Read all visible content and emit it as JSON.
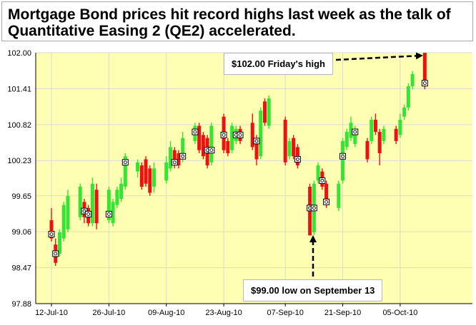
{
  "title": "Mortgage Bond prices hit record highs last week as the talk of\nQuantitative Easing 2 (QE2) accelerated.",
  "annotations": {
    "high": "$102.00 Friday's high",
    "low": "$99.00 low on September 13"
  },
  "colors": {
    "plot_bg": "#ffffb3",
    "grid": "#d9d9d9",
    "up": "#33e633",
    "down": "#ee1111",
    "arrow": "#000000"
  },
  "chart_data": {
    "type": "candlestick",
    "title": "Mortgage Bond prices hit record highs last week as the talk of Quantitative Easing 2 (QE2) accelerated.",
    "ylim": [
      97.88,
      102.0
    ],
    "y_ticks": [
      "97.88",
      "98.47",
      "99.06",
      "99.65",
      "100.23",
      "100.82",
      "101.41",
      "102.00"
    ],
    "x_ticks": [
      {
        "label": "12-Jul-10",
        "day": 0
      },
      {
        "label": "26-Jul-10",
        "day": 14
      },
      {
        "label": "09-Aug-10",
        "day": 28
      },
      {
        "label": "23-Aug-10",
        "day": 42
      },
      {
        "label": "07-Sep-10",
        "day": 57
      },
      {
        "label": "21-Sep-10",
        "day": 71
      },
      {
        "label": "05-Oct-10",
        "day": 85
      }
    ],
    "grid": true,
    "candles": [
      {
        "date": "12-Jul-10",
        "open": 99.25,
        "close": 98.95,
        "high": 99.45,
        "low": 98.9
      },
      {
        "date": "13-Jul-10",
        "open": 98.85,
        "close": 98.55,
        "high": 98.95,
        "low": 98.5
      },
      {
        "date": "14-Jul-10",
        "open": 98.7,
        "close": 99.05,
        "high": 99.1,
        "low": 98.65
      },
      {
        "date": "15-Jul-10",
        "open": 98.95,
        "close": 99.5,
        "high": 99.55,
        "low": 98.9
      },
      {
        "date": "16-Jul-10",
        "open": 99.1,
        "close": 99.65,
        "high": 99.75,
        "low": 99.05
      },
      {
        "date": "19-Jul-10",
        "open": 99.3,
        "close": 99.8,
        "high": 99.85,
        "low": 99.25
      },
      {
        "date": "20-Jul-10",
        "open": 99.55,
        "close": 99.3,
        "high": 99.6,
        "low": 99.2
      },
      {
        "date": "21-Jul-10",
        "open": 99.45,
        "close": 99.2,
        "high": 99.5,
        "low": 99.15
      },
      {
        "date": "22-Jul-10",
        "open": 99.2,
        "close": 99.85,
        "high": 99.95,
        "low": 99.15
      },
      {
        "date": "23-Jul-10",
        "open": 99.75,
        "close": 99.2,
        "high": 99.85,
        "low": 99.1
      },
      {
        "date": "26-Jul-10",
        "open": 99.25,
        "close": 99.75,
        "high": 99.8,
        "low": 99.2
      },
      {
        "date": "27-Jul-10",
        "open": 99.2,
        "close": 99.55,
        "high": 99.6,
        "low": 99.15
      },
      {
        "date": "28-Jul-10",
        "open": 99.5,
        "close": 99.75,
        "high": 99.8,
        "low": 99.45
      },
      {
        "date": "29-Jul-10",
        "open": 99.6,
        "close": 99.85,
        "high": 99.95,
        "low": 99.55
      },
      {
        "date": "30-Jul-10",
        "open": 99.8,
        "close": 100.3,
        "high": 100.35,
        "low": 99.75
      },
      {
        "date": "02-Aug-10",
        "open": 100.05,
        "close": 100.2,
        "high": 100.25,
        "low": 99.95
      },
      {
        "date": "03-Aug-10",
        "open": 100.15,
        "close": 99.8,
        "high": 100.2,
        "low": 99.75
      },
      {
        "date": "04-Aug-10",
        "open": 100.25,
        "close": 99.85,
        "high": 100.3,
        "low": 99.8
      },
      {
        "date": "05-Aug-10",
        "open": 100.1,
        "close": 99.7,
        "high": 100.15,
        "low": 99.65
      },
      {
        "date": "06-Aug-10",
        "open": 99.8,
        "close": 100.1,
        "high": 100.2,
        "low": 99.7
      },
      {
        "date": "09-Aug-10",
        "open": 99.9,
        "close": 100.2,
        "high": 100.3,
        "low": 99.85
      },
      {
        "date": "10-Aug-10",
        "open": 100.1,
        "close": 100.45,
        "high": 100.55,
        "low": 100.05
      },
      {
        "date": "11-Aug-10",
        "open": 100.4,
        "close": 100.15,
        "high": 100.45,
        "low": 100.1
      },
      {
        "date": "12-Aug-10",
        "open": 100.35,
        "close": 100.15,
        "high": 100.4,
        "low": 100.1
      },
      {
        "date": "13-Aug-10",
        "open": 100.25,
        "close": 100.6,
        "high": 100.7,
        "low": 100.2
      },
      {
        "date": "16-Aug-10",
        "open": 100.55,
        "close": 100.8,
        "high": 100.85,
        "low": 100.5
      },
      {
        "date": "17-Aug-10",
        "open": 100.8,
        "close": 100.4,
        "high": 100.85,
        "low": 100.35
      },
      {
        "date": "18-Aug-10",
        "open": 100.65,
        "close": 100.3,
        "high": 100.7,
        "low": 100.25
      },
      {
        "date": "19-Aug-10",
        "open": 100.6,
        "close": 100.15,
        "high": 100.65,
        "low": 100.1
      },
      {
        "date": "20-Aug-10",
        "open": 100.2,
        "close": 100.8,
        "high": 100.85,
        "low": 100.15
      },
      {
        "date": "23-Aug-10",
        "open": 100.95,
        "close": 100.4,
        "high": 101.0,
        "low": 100.35
      },
      {
        "date": "24-Aug-10",
        "open": 100.55,
        "close": 100.35,
        "high": 100.6,
        "low": 100.3
      },
      {
        "date": "25-Aug-10",
        "open": 100.4,
        "close": 100.8,
        "high": 100.85,
        "low": 100.35
      },
      {
        "date": "26-Aug-10",
        "open": 100.55,
        "close": 100.75,
        "high": 100.8,
        "low": 100.5
      },
      {
        "date": "27-Aug-10",
        "open": 100.75,
        "close": 100.55,
        "high": 100.8,
        "low": 100.5
      },
      {
        "date": "30-Aug-10",
        "open": 100.85,
        "close": 100.45,
        "high": 101.0,
        "low": 100.4
      },
      {
        "date": "31-Aug-10",
        "open": 100.6,
        "close": 100.25,
        "high": 100.65,
        "low": 100.15
      },
      {
        "date": "01-Sep-10",
        "open": 100.3,
        "close": 101.05,
        "high": 101.1,
        "low": 100.25
      },
      {
        "date": "02-Sep-10",
        "open": 101.2,
        "close": 100.85,
        "high": 101.25,
        "low": 100.8
      },
      {
        "date": "03-Sep-10",
        "open": 100.8,
        "close": 101.25,
        "high": 101.3,
        "low": 100.75
      },
      {
        "date": "07-Sep-10",
        "open": 100.9,
        "close": 100.2,
        "high": 100.95,
        "low": 100.15
      },
      {
        "date": "08-Sep-10",
        "open": 100.3,
        "close": 100.55,
        "high": 100.6,
        "low": 100.25
      },
      {
        "date": "09-Sep-10",
        "open": 100.6,
        "close": 100.3,
        "high": 100.65,
        "low": 100.25
      },
      {
        "date": "10-Sep-10",
        "open": 100.45,
        "close": 100.15,
        "high": 100.5,
        "low": 100.1
      },
      {
        "date": "13-Sep-10",
        "open": 99.8,
        "close": 99.0,
        "high": 99.85,
        "low": 99.0
      },
      {
        "date": "14-Sep-10",
        "open": 99.05,
        "close": 99.85,
        "high": 99.9,
        "low": 99.0
      },
      {
        "date": "15-Sep-10",
        "open": 99.9,
        "close": 100.15,
        "high": 100.2,
        "low": 99.85
      },
      {
        "date": "16-Sep-10",
        "open": 100.05,
        "close": 99.8,
        "high": 100.1,
        "low": 99.75
      },
      {
        "date": "17-Sep-10",
        "open": 99.85,
        "close": 99.5,
        "high": 99.9,
        "low": 99.45
      },
      {
        "date": "20-Sep-10",
        "open": 99.45,
        "close": 99.85,
        "high": 99.9,
        "low": 99.4
      },
      {
        "date": "21-Sep-10",
        "open": 99.9,
        "close": 100.55,
        "high": 100.6,
        "low": 99.85
      },
      {
        "date": "22-Sep-10",
        "open": 100.45,
        "close": 100.7,
        "high": 100.75,
        "low": 100.4
      },
      {
        "date": "23-Sep-10",
        "open": 100.6,
        "close": 100.85,
        "high": 100.95,
        "low": 100.55
      },
      {
        "date": "24-Sep-10",
        "open": 100.5,
        "close": 100.75,
        "high": 100.8,
        "low": 100.45
      },
      {
        "date": "27-Sep-10",
        "open": 100.55,
        "close": 100.25,
        "high": 100.6,
        "low": 100.2
      },
      {
        "date": "28-Sep-10",
        "open": 100.55,
        "close": 100.9,
        "high": 100.95,
        "low": 100.5
      },
      {
        "date": "29-Sep-10",
        "open": 100.9,
        "close": 100.7,
        "high": 101.0,
        "low": 100.65
      },
      {
        "date": "30-Sep-10",
        "open": 100.7,
        "close": 100.35,
        "high": 100.75,
        "low": 100.15
      },
      {
        "date": "01-Oct-10",
        "open": 100.55,
        "close": 100.75,
        "high": 100.8,
        "low": 100.5
      },
      {
        "date": "04-Oct-10",
        "open": 100.75,
        "close": 100.55,
        "high": 100.8,
        "low": 100.5
      },
      {
        "date": "05-Oct-10",
        "open": 100.65,
        "close": 100.9,
        "high": 101.0,
        "low": 100.6
      },
      {
        "date": "06-Oct-10",
        "open": 100.95,
        "close": 101.1,
        "high": 101.15,
        "low": 100.9
      },
      {
        "date": "07-Oct-10",
        "open": 101.1,
        "close": 101.45,
        "high": 101.5,
        "low": 101.05
      },
      {
        "date": "08-Oct-10",
        "open": 101.45,
        "close": 101.65,
        "high": 101.7,
        "low": 101.4
      },
      {
        "date": "11-Oct-10",
        "open": 102.0,
        "close": 101.45,
        "high": 102.0,
        "low": 101.4
      }
    ],
    "markers": [
      {
        "date": "12-Jul-10",
        "value": 99.02
      },
      {
        "date": "13-Jul-10",
        "value": 98.7
      },
      {
        "date": "20-Jul-10",
        "value": 99.4
      },
      {
        "date": "21-Jul-10",
        "value": 99.35
      },
      {
        "date": "26-Jul-10",
        "value": 99.35
      },
      {
        "date": "30-Jul-10",
        "value": 100.2
      },
      {
        "date": "11-Aug-10",
        "value": 100.2
      },
      {
        "date": "13-Aug-10",
        "value": 100.3
      },
      {
        "date": "16-Aug-10",
        "value": 100.7
      },
      {
        "date": "19-Aug-10",
        "value": 100.4
      },
      {
        "date": "20-Aug-10",
        "value": 100.4
      },
      {
        "date": "23-Aug-10",
        "value": 100.65
      },
      {
        "date": "26-Aug-10",
        "value": 100.65
      },
      {
        "date": "27-Aug-10",
        "value": 100.65
      },
      {
        "date": "31-Aug-10",
        "value": 100.55
      },
      {
        "date": "10-Sep-10",
        "value": 100.25
      },
      {
        "date": "13-Sep-10",
        "value": 99.45
      },
      {
        "date": "14-Sep-10",
        "value": 99.45
      },
      {
        "date": "16-Sep-10",
        "value": 99.9
      },
      {
        "date": "17-Sep-10",
        "value": 99.55
      },
      {
        "date": "21-Sep-10",
        "value": 100.3
      },
      {
        "date": "24-Sep-10",
        "value": 100.7
      },
      {
        "date": "11-Oct-10",
        "value": 101.5
      }
    ]
  }
}
